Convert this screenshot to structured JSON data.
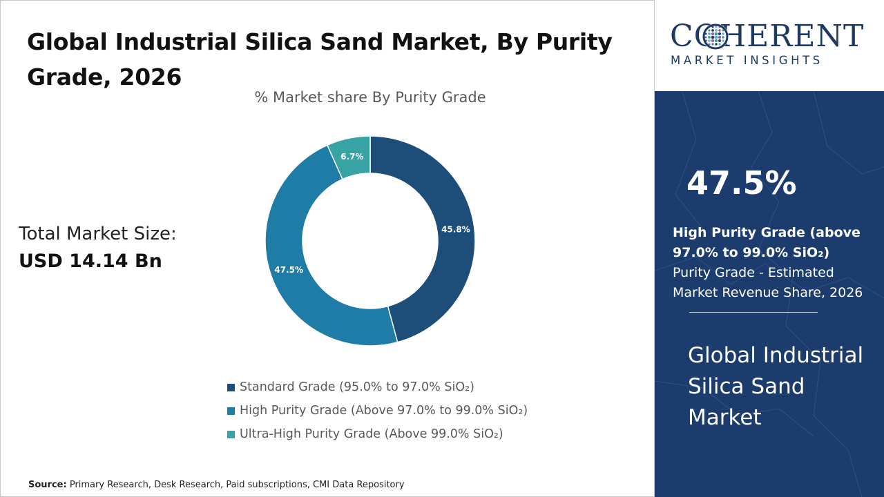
{
  "header": {
    "title": "Global Industrial Silica Sand Market, By Purity Grade, 2026"
  },
  "total_market": {
    "label": "Total Market Size:",
    "value": "USD 14.14 Bn"
  },
  "chart_data": {
    "type": "pie",
    "donut": true,
    "title": "% Market share By Purity Grade",
    "categories": [
      "Standard Grade (95.0% to 97.0% SiO₂)",
      "High Purity Grade (Above 97.0% to 99.0% SiO₂)",
      "Ultra-High Purity Grade (Above 99.0% SiO₂)"
    ],
    "values": [
      45.8,
      47.5,
      6.7
    ],
    "labels": [
      "45.8%",
      "47.5%",
      "6.7%"
    ],
    "colors": [
      "#1d4e79",
      "#1f7ca6",
      "#38a3a5"
    ],
    "legend_position": "bottom"
  },
  "source": {
    "label": "Source:",
    "text": "Primary Research, Desk Research, Paid subscriptions, CMI Data Repository"
  },
  "logo": {
    "main": "COHERENT",
    "sub": "MARKET INSIGHTS"
  },
  "highlight": {
    "percent": "47.5%",
    "segment": "High Purity Grade (above 97.0% to 99.0% SiO₂)",
    "description": "Purity Grade - Estimated Market Revenue Share, 2026"
  },
  "market_name": "Global Industrial Silica Sand Market",
  "colors": {
    "panel_blue": "#1d3c6e",
    "logo_blue": "#1e3a63"
  }
}
